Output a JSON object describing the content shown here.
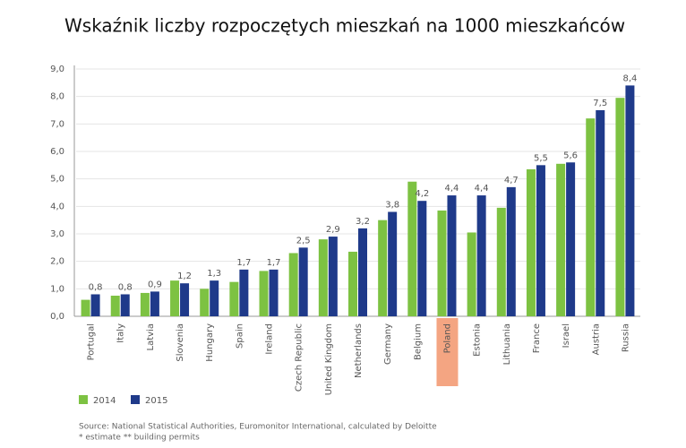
{
  "chart_data": {
    "type": "bar",
    "title": "Wskaźnik liczby rozpoczętych mieszkań na 1000 mieszkańców",
    "categories": [
      "Portugal",
      "Italy",
      "Latvia",
      "Slovenia",
      "Hungary",
      "Spain",
      "Ireland",
      "Czech Republic",
      "United Kingdom",
      "Netherlands",
      "Germany",
      "Belgium",
      "Poland",
      "Estonia",
      "Lithuania",
      "France",
      "Israel",
      "Austria",
      "Russia"
    ],
    "series": [
      {
        "name": "2014",
        "color": "#7dc242",
        "values": [
          0.6,
          0.75,
          0.85,
          1.3,
          1.0,
          1.25,
          1.65,
          2.3,
          2.8,
          2.35,
          3.5,
          4.9,
          3.85,
          3.05,
          3.95,
          5.35,
          5.55,
          7.2,
          7.95
        ]
      },
      {
        "name": "2015",
        "color": "#1f3a8a",
        "values": [
          0.8,
          0.8,
          0.9,
          1.2,
          1.3,
          1.7,
          1.7,
          2.5,
          2.9,
          3.2,
          3.8,
          4.2,
          4.4,
          4.4,
          4.7,
          5.5,
          5.6,
          7.5,
          8.4
        ],
        "value_labels": [
          "0,8",
          "0,8",
          "0,9",
          "1,2",
          "1,3",
          "1,7",
          "1,7",
          "2,5",
          "2,9",
          "3,2",
          "3,8",
          "4,2",
          "4,4",
          "4,4",
          "4,7",
          "5,5",
          "5,6",
          "7,5",
          "8,4"
        ]
      }
    ],
    "ylim": [
      0,
      9
    ],
    "yticks": [
      {
        "value": 0,
        "label": "0,0"
      },
      {
        "value": 1,
        "label": "1,0"
      },
      {
        "value": 2,
        "label": "2,0"
      },
      {
        "value": 3,
        "label": "3,0"
      },
      {
        "value": 4,
        "label": "4,0"
      },
      {
        "value": 5,
        "label": "5,0"
      },
      {
        "value": 6,
        "label": "6,0"
      },
      {
        "value": 7,
        "label": "7,0"
      },
      {
        "value": 8,
        "label": "8,0"
      },
      {
        "value": 9,
        "label": "9,0"
      }
    ],
    "grid": true,
    "highlight": {
      "category": "Poland",
      "color": "#f4a582"
    },
    "source": "Source: National Statistical Authorities, Euromonitor International, calculated by Deloitte",
    "note": "* estimate ** building permits"
  }
}
